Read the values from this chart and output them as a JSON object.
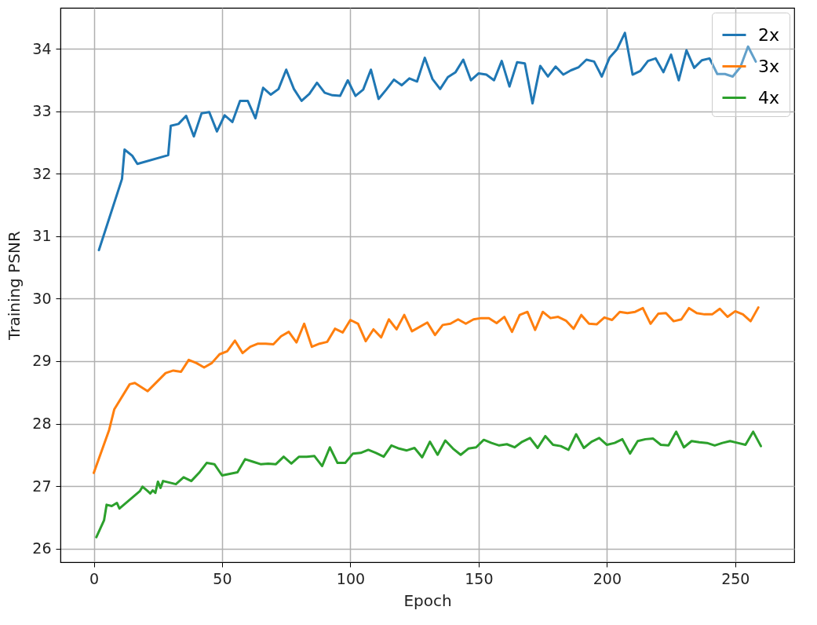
{
  "chart_data": {
    "type": "line",
    "xlabel": "Epoch",
    "ylabel": "Training PSNR",
    "xlim": [
      -13,
      273
    ],
    "ylim": [
      25.78,
      34.66
    ],
    "xticks": [
      0,
      50,
      100,
      150,
      200,
      250
    ],
    "yticks": [
      26,
      27,
      28,
      29,
      30,
      31,
      32,
      33,
      34
    ],
    "grid": true,
    "legend": "top right",
    "marker": "none",
    "line_style": "solid",
    "series": [
      {
        "name": "2x",
        "color": "#1f77b4",
        "x": [
          2,
          11,
          12,
          15,
          17,
          29,
          30,
          33,
          36,
          39,
          42,
          45,
          48,
          51,
          54,
          57,
          60,
          63,
          66,
          69,
          72,
          75,
          78,
          81,
          84,
          87,
          90,
          93,
          96,
          99,
          102,
          105,
          108,
          111,
          114,
          117,
          120,
          123,
          126,
          129,
          132,
          135,
          138,
          141,
          144,
          147,
          150,
          153,
          156,
          159,
          162,
          165,
          168,
          171,
          174,
          177,
          180,
          183,
          186,
          189,
          192,
          195,
          198,
          201,
          204,
          207,
          210,
          213,
          216,
          219,
          222,
          225,
          228,
          231,
          234,
          237,
          240,
          243,
          246,
          249,
          252,
          255,
          258
        ],
        "values": [
          30.78,
          31.92,
          32.39,
          32.29,
          32.16,
          32.3,
          32.77,
          32.8,
          32.93,
          32.6,
          32.97,
          32.99,
          32.68,
          32.94,
          32.83,
          33.17,
          33.17,
          32.89,
          33.38,
          33.27,
          33.36,
          33.67,
          33.36,
          33.17,
          33.28,
          33.46,
          33.3,
          33.26,
          33.25,
          33.5,
          33.25,
          33.35,
          33.67,
          33.2,
          33.35,
          33.51,
          33.42,
          33.53,
          33.48,
          33.86,
          33.52,
          33.36,
          33.55,
          33.63,
          33.83,
          33.5,
          33.61,
          33.59,
          33.5,
          33.81,
          33.4,
          33.79,
          33.77,
          33.13,
          33.73,
          33.56,
          33.72,
          33.59,
          33.66,
          33.71,
          33.83,
          33.8,
          33.56,
          33.86,
          34.0,
          34.26,
          33.59,
          33.65,
          33.81,
          33.85,
          33.63,
          33.91,
          33.5,
          33.98,
          33.7,
          33.82,
          33.85,
          33.6,
          33.6,
          33.56,
          33.71,
          34.04,
          33.8
        ]
      },
      {
        "name": "3x",
        "color": "#ff7f0e",
        "x": [
          0,
          6,
          8,
          14,
          16,
          21,
          28,
          31,
          34,
          37,
          40,
          43,
          46,
          49,
          52,
          55,
          58,
          61,
          64,
          67,
          70,
          73,
          76,
          79,
          82,
          85,
          88,
          91,
          94,
          97,
          100,
          103,
          106,
          109,
          112,
          115,
          118,
          121,
          124,
          130,
          133,
          136,
          139,
          142,
          145,
          148,
          151,
          154,
          157,
          160,
          163,
          166,
          169,
          172,
          175,
          178,
          181,
          184,
          187,
          190,
          193,
          196,
          199,
          202,
          205,
          208,
          211,
          214,
          217,
          220,
          223,
          226,
          229,
          232,
          235,
          238,
          241,
          244,
          247,
          250,
          253,
          256,
          259
        ],
        "values": [
          27.21,
          27.9,
          28.23,
          28.63,
          28.65,
          28.52,
          28.81,
          28.85,
          28.83,
          29.02,
          28.97,
          28.9,
          28.97,
          29.11,
          29.16,
          29.33,
          29.13,
          29.23,
          29.28,
          29.28,
          29.27,
          29.4,
          29.47,
          29.3,
          29.6,
          29.23,
          29.28,
          29.31,
          29.52,
          29.46,
          29.66,
          29.6,
          29.32,
          29.51,
          29.38,
          29.67,
          29.51,
          29.74,
          29.48,
          29.62,
          29.42,
          29.58,
          29.6,
          29.67,
          29.6,
          29.67,
          29.69,
          29.69,
          29.61,
          29.71,
          29.47,
          29.74,
          29.79,
          29.5,
          29.79,
          29.69,
          29.71,
          29.65,
          29.52,
          29.74,
          29.6,
          29.59,
          29.7,
          29.66,
          29.79,
          29.77,
          29.79,
          29.85,
          29.6,
          29.76,
          29.77,
          29.64,
          29.67,
          29.85,
          29.77,
          29.75,
          29.75,
          29.84,
          29.71,
          29.8,
          29.75,
          29.64,
          29.86
        ]
      },
      {
        "name": "4x",
        "color": "#2ca02c",
        "x": [
          1,
          4,
          5,
          7,
          9,
          10,
          18,
          19,
          21,
          22,
          23,
          24,
          25,
          26,
          27,
          32,
          35,
          38,
          41,
          44,
          47,
          50,
          56,
          59,
          62,
          65,
          68,
          71,
          74,
          77,
          80,
          83,
          86,
          89,
          92,
          95,
          98,
          101,
          104,
          107,
          110,
          113,
          116,
          119,
          122,
          125,
          128,
          131,
          134,
          137,
          140,
          143,
          146,
          149,
          152,
          155,
          158,
          161,
          164,
          167,
          170,
          173,
          176,
          179,
          182,
          185,
          188,
          191,
          194,
          197,
          200,
          203,
          206,
          209,
          212,
          215,
          218,
          221,
          224,
          227,
          230,
          233,
          236,
          239,
          242,
          245,
          248,
          251,
          254,
          257,
          260
        ],
        "values": [
          26.18,
          26.45,
          26.7,
          26.68,
          26.73,
          26.64,
          26.92,
          26.99,
          26.92,
          26.88,
          26.93,
          26.89,
          27.07,
          26.97,
          27.08,
          27.03,
          27.14,
          27.08,
          27.21,
          27.37,
          27.35,
          27.17,
          27.22,
          27.43,
          27.39,
          27.35,
          27.36,
          27.35,
          27.47,
          27.36,
          27.47,
          27.47,
          27.48,
          27.32,
          27.62,
          27.37,
          27.37,
          27.52,
          27.53,
          27.58,
          27.53,
          27.47,
          27.65,
          27.6,
          27.57,
          27.61,
          27.46,
          27.71,
          27.5,
          27.73,
          27.6,
          27.5,
          27.6,
          27.62,
          27.74,
          27.69,
          27.65,
          27.67,
          27.62,
          27.71,
          27.77,
          27.61,
          27.8,
          27.66,
          27.64,
          27.58,
          27.83,
          27.61,
          27.71,
          27.77,
          27.66,
          27.69,
          27.75,
          27.52,
          27.72,
          27.75,
          27.76,
          27.66,
          27.65,
          27.87,
          27.62,
          27.72,
          27.7,
          27.69,
          27.65,
          27.69,
          27.72,
          27.69,
          27.66,
          27.87,
          27.64
        ]
      }
    ]
  }
}
